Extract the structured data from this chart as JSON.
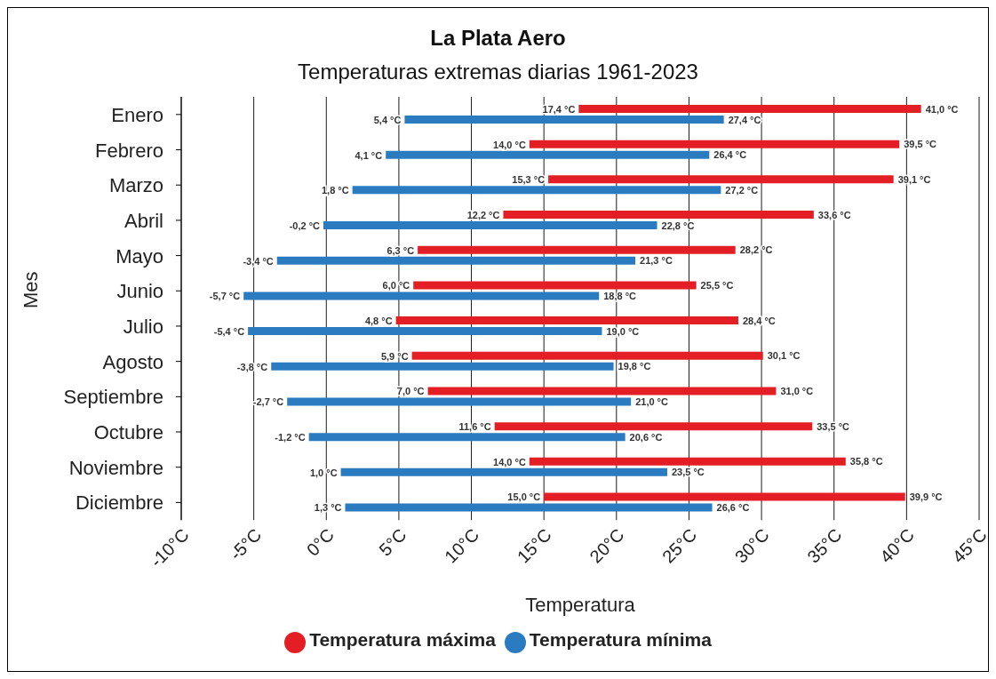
{
  "chart_data": {
    "type": "bar",
    "orientation": "horizontal",
    "title": "La Plata Aero",
    "subtitle": "Temperaturas extremas diarias 1961-2023",
    "xlabel": "Temperatura",
    "ylabel": "Mes",
    "categories": [
      "Enero",
      "Febrero",
      "Marzo",
      "Abril",
      "Mayo",
      "Junio",
      "Julio",
      "Agosto",
      "Septiembre",
      "Octubre",
      "Noviembre",
      "Diciembre"
    ],
    "series": [
      {
        "name": "Temperatura máxima",
        "color": "#e31e24",
        "base": [
          17.4,
          14.0,
          15.3,
          12.2,
          6.3,
          6.0,
          4.8,
          5.9,
          7.0,
          11.6,
          14.0,
          15.0
        ],
        "values": [
          23.6,
          25.5,
          23.8,
          21.4,
          21.9,
          19.5,
          23.6,
          24.2,
          24.0,
          21.9,
          21.8,
          24.9
        ],
        "value_labels": [
          "41,0 °C",
          "39,5 °C",
          "39,1 °C",
          "33,6 °C",
          "28,2 °C",
          "25,5 °C",
          "28,4 °C",
          "30,1 °C",
          "31,0 °C",
          "33,5 °C",
          "35,8 °C",
          "39,9 °C"
        ]
      },
      {
        "name": "Temperatura mínima",
        "color": "#2a7bbf",
        "base": [
          5.4,
          4.1,
          1.8,
          -0.2,
          -3.4,
          -5.7,
          -5.4,
          -3.8,
          -2.7,
          -1.2,
          1.0,
          1.3
        ],
        "values": [
          22.0,
          22.3,
          25.4,
          23.0,
          24.7,
          24.5,
          24.4,
          23.6,
          23.7,
          21.8,
          22.5,
          25.3
        ],
        "value_labels": [
          "27,4 °C",
          "26,4 °C",
          "27,2 °C",
          "22,8 °C",
          "21,3 °C",
          "18,8 °C",
          "19,0 °C",
          "19,8 °C",
          "21,0 °C",
          "20,6 °C",
          "23,5 °C",
          "26,6 °C"
        ]
      }
    ],
    "annotations": [
      {
        "text": "17,4 °C",
        "x": 17.4,
        "y": "Enero"
      },
      {
        "text": "14,0 °C",
        "x": 14.0,
        "y": "Febrero"
      },
      {
        "text": "15,3 °C",
        "x": 15.3,
        "y": "Marzo"
      },
      {
        "text": "12,2 °C",
        "x": 12.2,
        "y": "Abril"
      },
      {
        "text": "6,3 °C",
        "x": 6.3,
        "y": "Mayo"
      },
      {
        "text": "6,0 °C",
        "x": 6.0,
        "y": "Junio"
      },
      {
        "text": "4,8 °C",
        "x": 4.8,
        "y": "Julio"
      },
      {
        "text": "5,9 °C",
        "x": 5.9,
        "y": "Agosto"
      },
      {
        "text": "7,0 °C",
        "x": 7.0,
        "y": "Septiembre"
      },
      {
        "text": "11,6 °C",
        "x": 11.6,
        "y": "Octubre"
      },
      {
        "text": "14,0 °C",
        "x": 14.0,
        "y": "Noviembre"
      },
      {
        "text": "15,0 °C",
        "x": 15.0,
        "y": "Diciembre"
      },
      {
        "text": "5,4 °C",
        "x": 5.4,
        "y": "Enero"
      },
      {
        "text": "4,1 °C",
        "x": 4.1,
        "y": "Febrero"
      },
      {
        "text": "1,8 °C",
        "x": 1.8,
        "y": "Marzo"
      },
      {
        "text": "-0,2 °C",
        "x": -0.2,
        "y": "Abril"
      },
      {
        "text": "-3,4 °C",
        "x": -3.4,
        "y": "Mayo"
      },
      {
        "text": "-5,7 °C",
        "x": -5.7,
        "y": "Junio"
      },
      {
        "text": "-5,4 °C",
        "x": -5.4,
        "y": "Julio"
      },
      {
        "text": "-3,8 °C",
        "x": -3.8,
        "y": "Agosto"
      },
      {
        "text": "-2,7 °C",
        "x": -2.7,
        "y": "Septiembre"
      },
      {
        "text": "-1,2 °C",
        "x": -1.2,
        "y": "Octubre"
      },
      {
        "text": "1,0 °C",
        "x": 1.0,
        "y": "Noviembre"
      },
      {
        "text": "1,3 °C",
        "x": 1.3,
        "y": "Diciembre"
      }
    ],
    "xlim": [
      -10,
      45
    ],
    "xticks": [
      {
        "value": -10,
        "label": "-10°C"
      },
      {
        "value": -5,
        "label": "-5°C"
      },
      {
        "value": 0,
        "label": "0°C"
      },
      {
        "value": 5,
        "label": "5°C"
      },
      {
        "value": 10,
        "label": "10°C"
      },
      {
        "value": 15,
        "label": "15°C"
      },
      {
        "value": 20,
        "label": "20°C"
      },
      {
        "value": 25,
        "label": "25°C"
      },
      {
        "value": 30,
        "label": "30°C"
      },
      {
        "value": 35,
        "label": "35°C"
      },
      {
        "value": 40,
        "label": "40°C"
      },
      {
        "value": 45,
        "label": "45°C"
      }
    ],
    "grid": "x",
    "legend": "bottom",
    "marker": "circle"
  }
}
